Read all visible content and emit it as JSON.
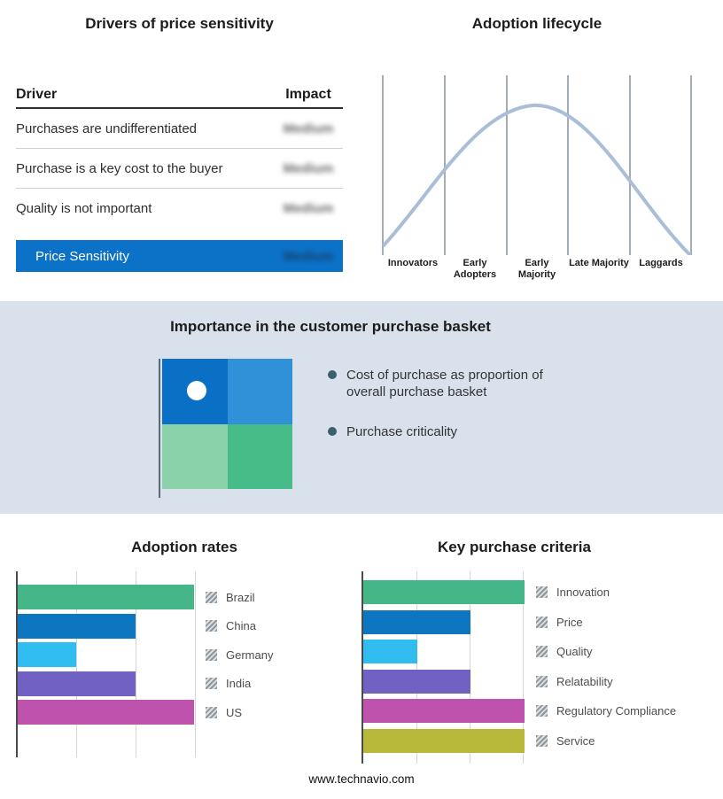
{
  "drivers_table": {
    "title": "Drivers of price sensitivity",
    "columns": {
      "driver": "Driver",
      "impact": "Impact"
    },
    "rows": [
      {
        "driver": "Purchases are undifferentiated",
        "impact": "Medium"
      },
      {
        "driver": "Purchase is a key cost to the buyer",
        "impact": "Medium"
      },
      {
        "driver": "Quality is not important",
        "impact": "Medium"
      }
    ],
    "summary_row": {
      "driver": "Price Sensitivity",
      "impact": "Medium"
    },
    "highlight_color": "#0c72c8"
  },
  "basket_section": {
    "title": "Importance in the customer purchase basket",
    "bullets": [
      "Cost of purchase as proportion of overall purchase basket",
      "Purchase criticality"
    ],
    "quadrant_colors": [
      "#0a70c5",
      "#3090d8",
      "#8ad2aa",
      "#47bb88"
    ]
  },
  "chart_data": [
    {
      "type": "bar",
      "title": "Adoption rates",
      "orientation": "horizontal",
      "categories": [
        "Brazil",
        "China",
        "Germany",
        "India",
        "US"
      ],
      "values": [
        3,
        2,
        1,
        2,
        3
      ],
      "xlim": [
        0,
        3
      ],
      "colors": [
        "#44b687",
        "#0d76c1",
        "#32bdf0",
        "#7161c3",
        "#bf52ad"
      ],
      "grid": true,
      "legend_position": "right"
    },
    {
      "type": "bar",
      "title": "Key purchase criteria",
      "orientation": "horizontal",
      "categories": [
        "Innovation",
        "Price",
        "Quality",
        "Relatability",
        "Regulatory Compliance",
        "Service"
      ],
      "values": [
        3,
        2,
        1,
        2,
        3,
        3
      ],
      "xlim": [
        0,
        3
      ],
      "colors": [
        "#44b687",
        "#0d76c1",
        "#32bdf0",
        "#7161c3",
        "#bf52ad",
        "#b8b83a"
      ],
      "grid": true,
      "legend_position": "right"
    },
    {
      "type": "line",
      "title": "Adoption lifecycle",
      "categories": [
        "Innovators",
        "Early Adopters",
        "Early Majority",
        "Late Majority",
        "Laggards"
      ],
      "description": "Bell curve peaking over Early Majority",
      "line_color": "#aabed8"
    }
  ],
  "footer": {
    "url": "www.technavio.com"
  }
}
